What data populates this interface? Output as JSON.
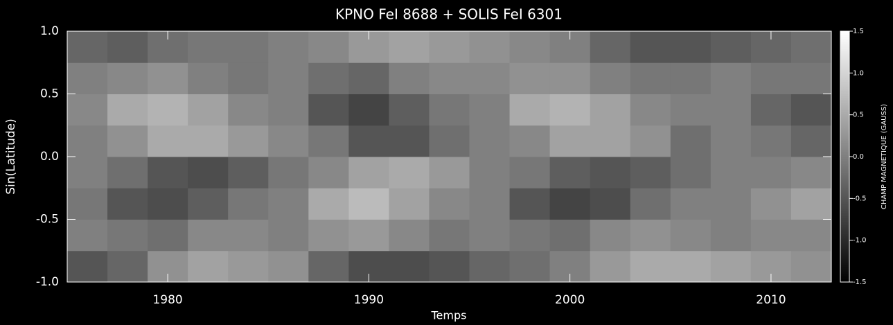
{
  "chart_data": {
    "type": "heatmap",
    "title": "KPNO FeI 8688 + SOLIS FeI 6301",
    "xlabel": "Temps",
    "ylabel": "Sin(Latitude)",
    "colorbar_label": "CHAMP MAGNETIQUE (GAUSS)",
    "xlim": [
      1975,
      2013
    ],
    "ylim": [
      -1,
      1
    ],
    "xticks": [
      1980,
      1990,
      2000,
      2010
    ],
    "yticks": [
      {
        "value": -1,
        "label": "-1.0"
      },
      -0.5,
      {
        "value": 0,
        "label": "0.0"
      },
      0.5,
      {
        "value": 1,
        "label": "1.0"
      }
    ],
    "clim": [
      -1.5,
      1.5
    ],
    "cticks": [
      -1.5,
      -0.5,
      {
        "value": -1,
        "label": "-1.0"
      },
      {
        "value": 0,
        "label": "0.0"
      },
      0.5,
      {
        "value": 1,
        "label": "1.0"
      },
      1.5
    ],
    "xbins": [
      1975,
      1977,
      1979,
      1981,
      1983,
      1985,
      1987,
      1989,
      1991,
      1993,
      1995,
      1997,
      1999,
      2001,
      2003,
      2005,
      2007,
      2009,
      2011,
      2013
    ],
    "ybins": [
      -1,
      -0.75,
      -0.5,
      -0.25,
      0,
      0.25,
      0.5,
      0.75,
      1
    ],
    "z": [
      [
        -0.5,
        -0.3,
        0.2,
        0.4,
        0.3,
        0.2,
        -0.3,
        -0.6,
        -0.6,
        -0.5,
        -0.3,
        -0.2,
        0,
        0.3,
        0.5,
        0.5,
        0.4,
        0.3,
        0.2
      ],
      [
        0,
        -0.1,
        -0.2,
        0.1,
        0.1,
        0,
        0.2,
        0.3,
        0.1,
        -0.1,
        0,
        -0.1,
        -0.2,
        0.1,
        0.2,
        0.1,
        0,
        0.1,
        0.1
      ],
      [
        -0.1,
        -0.5,
        -0.6,
        -0.4,
        -0.1,
        0,
        0.5,
        0.7,
        0.4,
        0.1,
        0,
        -0.5,
        -0.7,
        -0.6,
        -0.2,
        0,
        0,
        0.2,
        0.4
      ],
      [
        0,
        -0.2,
        -0.5,
        -0.6,
        -0.4,
        -0.1,
        0.1,
        0.4,
        0.5,
        0.3,
        0,
        -0.1,
        -0.4,
        -0.5,
        -0.4,
        -0.2,
        0,
        0,
        0.1
      ],
      [
        0,
        0.2,
        0.5,
        0.5,
        0.3,
        0.1,
        -0.1,
        -0.5,
        -0.5,
        -0.2,
        0,
        0.1,
        0.4,
        0.4,
        0.2,
        -0.2,
        0,
        -0.1,
        -0.3
      ],
      [
        0.1,
        0.5,
        0.6,
        0.4,
        0.1,
        0,
        -0.5,
        -0.7,
        -0.4,
        -0.1,
        0,
        0.5,
        0.6,
        0.4,
        0.1,
        0,
        0,
        -0.3,
        -0.5
      ],
      [
        0,
        0.1,
        0.2,
        0,
        -0.1,
        0,
        -0.2,
        -0.3,
        0,
        0.1,
        0.1,
        0.2,
        0.2,
        0,
        -0.1,
        -0.1,
        0,
        -0.1,
        -0.1
      ],
      [
        -0.3,
        -0.4,
        -0.2,
        -0.1,
        -0.1,
        0,
        0.1,
        0.3,
        0.4,
        0.3,
        0.2,
        0.1,
        0,
        -0.3,
        -0.5,
        -0.5,
        -0.4,
        -0.3,
        -0.2
      ]
    ]
  }
}
